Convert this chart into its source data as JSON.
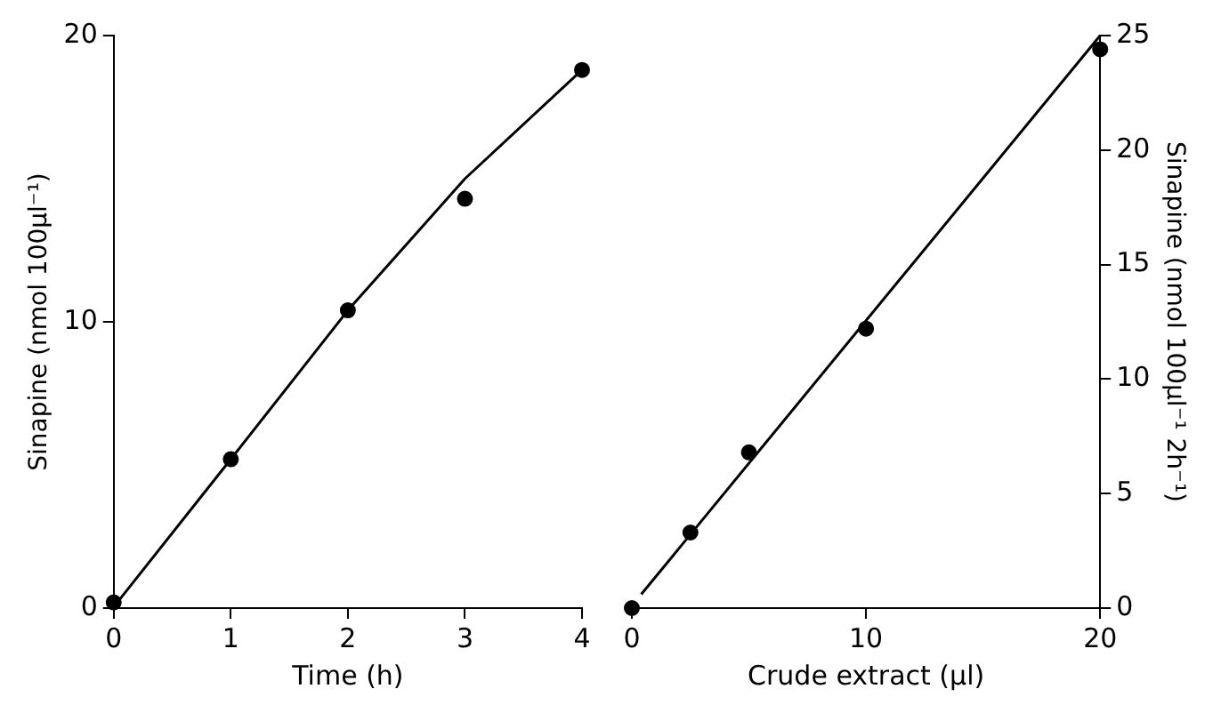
{
  "chart_data": [
    {
      "type": "scatter",
      "xlabel": "Time (h)",
      "ylabel": "Sinapine (nmol 100µl⁻¹)",
      "xlim": [
        0,
        4
      ],
      "ylim": [
        0,
        20
      ],
      "xticks": [
        0,
        1,
        2,
        3,
        4
      ],
      "yticks": [
        0,
        10,
        20
      ],
      "grid": false,
      "legend": false,
      "marker": "circle",
      "series": [
        {
          "type": "scatter",
          "color": "#000000",
          "x": [
            0,
            1,
            2,
            3,
            4
          ],
          "values": [
            0.2,
            5.2,
            10.4,
            14.3,
            18.8
          ]
        },
        {
          "type": "line",
          "color": "#000000",
          "marker": "none",
          "x": [
            0.05,
            1,
            2,
            3,
            4
          ],
          "values": [
            0.3,
            5.2,
            10.4,
            15.0,
            18.8
          ]
        }
      ]
    },
    {
      "type": "scatter",
      "xlabel": "Crude extract (µl)",
      "ylabel": "Sinapine (nmol 100µl⁻¹ 2h⁻¹)",
      "xlim": [
        0,
        20
      ],
      "ylim": [
        0,
        25
      ],
      "xticks": [
        0,
        10,
        20
      ],
      "yticks": [
        0,
        5,
        10,
        15,
        20,
        25
      ],
      "grid": false,
      "legend": false,
      "marker": "circle",
      "series": [
        {
          "type": "scatter",
          "color": "#000000",
          "x": [
            0,
            2.5,
            5,
            10,
            20
          ],
          "values": [
            0,
            3.3,
            6.8,
            12.2,
            24.4
          ]
        },
        {
          "type": "line",
          "color": "#000000",
          "marker": "none",
          "x": [
            0.4,
            20
          ],
          "values": [
            0.6,
            25
          ]
        }
      ]
    }
  ]
}
